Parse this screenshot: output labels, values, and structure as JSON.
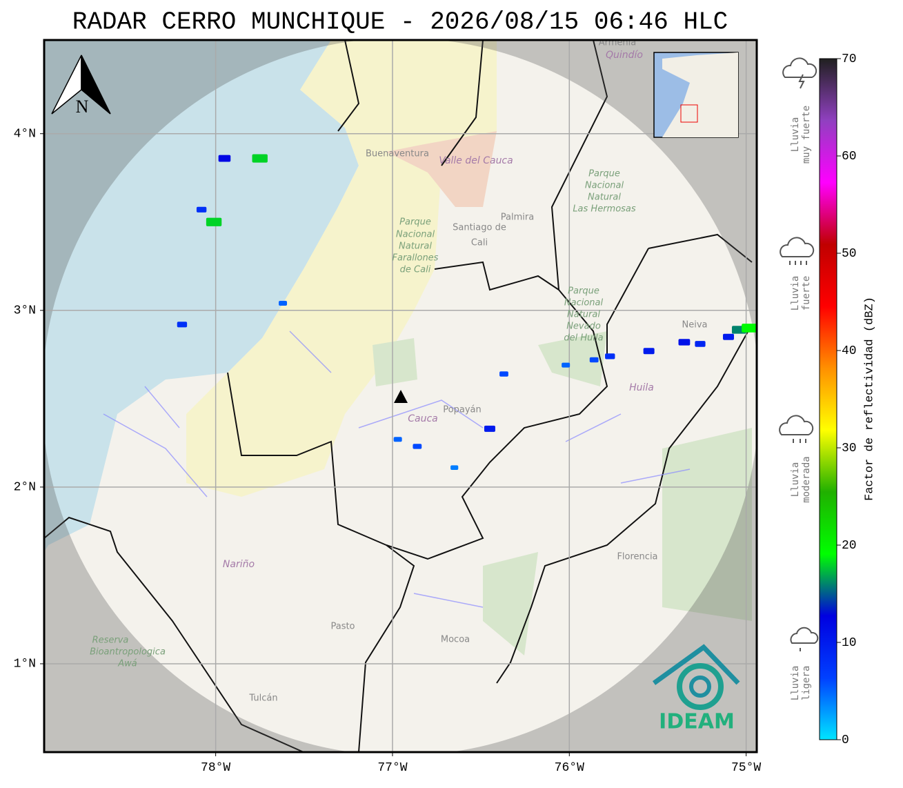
{
  "title": "RADAR CERRO MUNCHIQUE - 2026/08/15 06:46 HLC",
  "map": {
    "lon_lim": [
      -78.97,
      -74.94
    ],
    "lat_lim": [
      0.5,
      4.53
    ],
    "lon_ticks": [
      {
        "value": -78,
        "label": "78°W"
      },
      {
        "value": -77,
        "label": "77°W"
      },
      {
        "value": -76,
        "label": "76°W"
      },
      {
        "value": -75,
        "label": "75°W"
      }
    ],
    "lat_ticks": [
      {
        "value": 1,
        "label": "1°N"
      },
      {
        "value": 2,
        "label": "2°N"
      },
      {
        "value": 3,
        "label": "3°N"
      },
      {
        "value": 4,
        "label": "4°N"
      }
    ],
    "grid": true,
    "north_label": "N",
    "places": [
      "Buenaventura",
      "Valle del Cauca",
      "Parque",
      "Nacional",
      "Natural",
      "Farallones",
      "de Cali",
      "Santiago de",
      "Cali",
      "Palmira",
      "Parque",
      "Nacional",
      "Natural",
      "Las Hermosas",
      "Parque",
      "Nacional",
      "Natural",
      "Nevado",
      "del Huila",
      "Neiva",
      "Huila",
      "Cauca",
      "Popayán",
      "Nariño",
      "Florencia",
      "Pasto",
      "Mocoa",
      "Reserva",
      "Bioantropologica",
      "Awá",
      "Tulcán",
      "Armenia",
      "Quindío"
    ],
    "logo": "IDEAM",
    "echoes": [
      {
        "lon": -77.75,
        "lat": 3.86,
        "dbz": 18
      },
      {
        "lon": -77.95,
        "lat": 3.86,
        "dbz": 12
      },
      {
        "lon": -78.08,
        "lat": 3.57,
        "dbz": 8
      },
      {
        "lon": -78.01,
        "lat": 3.5,
        "dbz": 18
      },
      {
        "lon": -78.19,
        "lat": 2.92,
        "dbz": 8
      },
      {
        "lon": -77.62,
        "lat": 3.04,
        "dbz": 5
      },
      {
        "lon": -76.86,
        "lat": 2.23,
        "dbz": 6
      },
      {
        "lon": -76.97,
        "lat": 2.27,
        "dbz": 5
      },
      {
        "lon": -76.45,
        "lat": 2.33,
        "dbz": 10
      },
      {
        "lon": -76.65,
        "lat": 2.11,
        "dbz": 4
      },
      {
        "lon": -76.02,
        "lat": 2.69,
        "dbz": 5
      },
      {
        "lon": -76.37,
        "lat": 2.64,
        "dbz": 6
      },
      {
        "lon": -75.86,
        "lat": 2.72,
        "dbz": 6
      },
      {
        "lon": -75.77,
        "lat": 2.74,
        "dbz": 8
      },
      {
        "lon": -75.55,
        "lat": 2.77,
        "dbz": 10
      },
      {
        "lon": -75.35,
        "lat": 2.82,
        "dbz": 11
      },
      {
        "lon": -75.26,
        "lat": 2.81,
        "dbz": 9
      },
      {
        "lon": -75.1,
        "lat": 2.85,
        "dbz": 10
      },
      {
        "lon": -75.04,
        "lat": 2.89,
        "dbz": 16
      },
      {
        "lon": -74.98,
        "lat": 2.9,
        "dbz": 19
      }
    ]
  },
  "colorbar": {
    "label": "Factor de reflectividad (dBZ)",
    "lim": [
      0,
      70
    ],
    "ticks": [
      0,
      10,
      20,
      30,
      40,
      50,
      60,
      70
    ],
    "colors": [
      "#00e5ff",
      "#0040ff",
      "#0000e0",
      "#00ff00",
      "#20b000",
      "#ffff00",
      "#ff9000",
      "#ff0000",
      "#c00000",
      "#ff00ff",
      "#9040c0",
      "#202020"
    ],
    "rain_levels": [
      [
        "Lluvia",
        "muy fuerte"
      ],
      [
        "Lluvia",
        "fuerte"
      ],
      [
        "Lluvia",
        "moderada"
      ],
      [
        "Lluvia",
        "ligera"
      ]
    ]
  }
}
